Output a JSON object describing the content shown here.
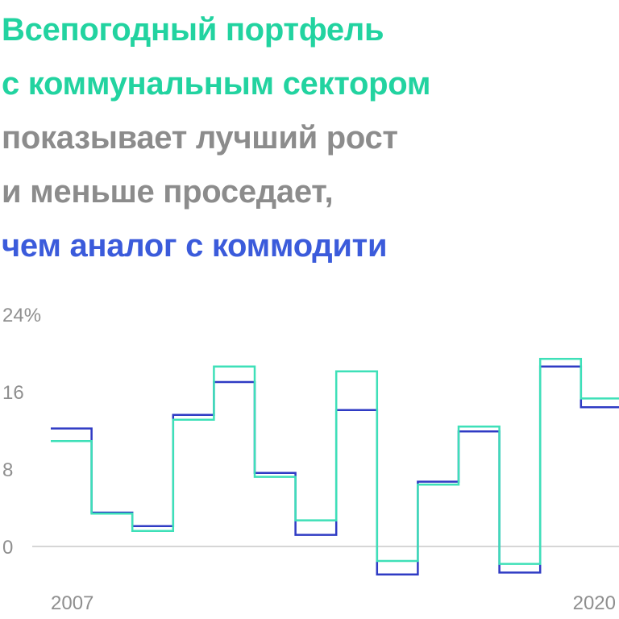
{
  "title_lines": [
    {
      "text": "Всепогодный портфель",
      "color": "#22d3a0"
    },
    {
      "text": "с коммунальным сектором",
      "color": "#22d3a0"
    },
    {
      "text": "показывает лучший рост",
      "color": "#8c8c8c"
    },
    {
      "text": "и меньше проседает,",
      "color": "#8c8c8c"
    },
    {
      "text": "чем аналог с коммодити",
      "color": "#3b5bdb"
    }
  ],
  "chart_data": {
    "type": "line",
    "step": true,
    "x": [
      2007,
      2008,
      2009,
      2010,
      2011,
      2012,
      2013,
      2014,
      2015,
      2016,
      2017,
      2018,
      2019,
      2020
    ],
    "x_tick_labels": [
      "2007",
      "2020"
    ],
    "y_ticks": [
      0,
      8,
      16,
      24
    ],
    "y_tick_labels": [
      "0",
      "8",
      "16",
      "24%"
    ],
    "ylim": [
      -5,
      24
    ],
    "grid": false,
    "zero_line": true,
    "series": [
      {
        "color": "#2f3bc4",
        "values": [
          12.2,
          3.5,
          2.1,
          13.6,
          17.0,
          7.6,
          1.2,
          14.1,
          -2.9,
          6.7,
          11.9,
          -2.7,
          18.6,
          14.4
        ]
      },
      {
        "color": "#3ee0b8",
        "values": [
          10.9,
          3.4,
          1.6,
          13.1,
          18.6,
          7.2,
          2.7,
          18.1,
          -1.5,
          6.4,
          12.4,
          -1.8,
          19.4,
          15.3
        ]
      }
    ]
  }
}
